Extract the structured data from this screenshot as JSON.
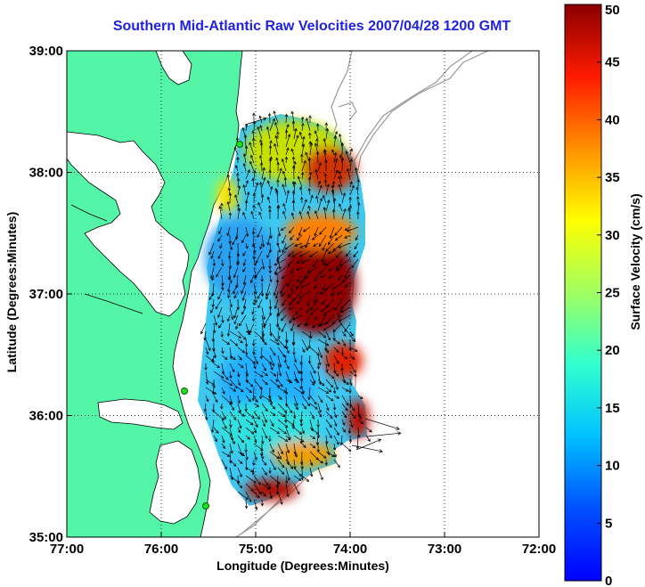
{
  "title": "Southern Mid-Atlantic Raw Velocities 2007/04/28 1200 GMT",
  "x_axis": {
    "label": "Longitude (Degrees:Minutes)",
    "ticks": [
      "77:00",
      "76:00",
      "75:00",
      "74:00",
      "73:00",
      "72:00"
    ],
    "range_deg_west": [
      77,
      72
    ]
  },
  "y_axis": {
    "label": "Latitude (Degrees:Minutes)",
    "ticks": [
      "39:00",
      "38:00",
      "37:00",
      "36:00",
      "35:00"
    ],
    "range_deg_north": [
      35,
      39
    ]
  },
  "colorbar": {
    "label": "Surface Velocity (cm/s)",
    "ticks": [
      "0",
      "5",
      "10",
      "15",
      "20",
      "25",
      "30",
      "35",
      "40",
      "45",
      "50"
    ],
    "min": 0,
    "max": 50,
    "colormap": "jet"
  },
  "map": {
    "land_color": "#55f5a8",
    "water_color": "#ffffff",
    "bathymetry_color": "#9a9a9a",
    "grid": "dotted",
    "vector_color": "#000000",
    "station_color": "#22dd22"
  }
}
